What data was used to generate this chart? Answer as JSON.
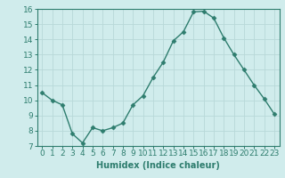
{
  "x": [
    0,
    1,
    2,
    3,
    4,
    5,
    6,
    7,
    8,
    9,
    10,
    11,
    12,
    13,
    14,
    15,
    16,
    17,
    18,
    19,
    20,
    21,
    22,
    23
  ],
  "y": [
    10.5,
    10.0,
    9.7,
    7.8,
    7.2,
    8.2,
    8.0,
    8.2,
    8.5,
    9.7,
    10.3,
    11.5,
    12.5,
    13.9,
    14.5,
    15.8,
    15.85,
    15.4,
    14.1,
    13.0,
    12.0,
    11.0,
    10.1,
    9.1
  ],
  "line_color": "#2e7d6e",
  "marker": "D",
  "marker_size": 2.5,
  "bg_color": "#d0ecec",
  "grid_color": "#b8d8d8",
  "xlabel": "Humidex (Indice chaleur)",
  "xlabel_fontsize": 7,
  "tick_fontsize": 6.5,
  "ylim": [
    7,
    16
  ],
  "xlim": [
    -0.5,
    23.5
  ],
  "yticks": [
    7,
    8,
    9,
    10,
    11,
    12,
    13,
    14,
    15,
    16
  ],
  "xticks": [
    0,
    1,
    2,
    3,
    4,
    5,
    6,
    7,
    8,
    9,
    10,
    11,
    12,
    13,
    14,
    15,
    16,
    17,
    18,
    19,
    20,
    21,
    22,
    23
  ]
}
